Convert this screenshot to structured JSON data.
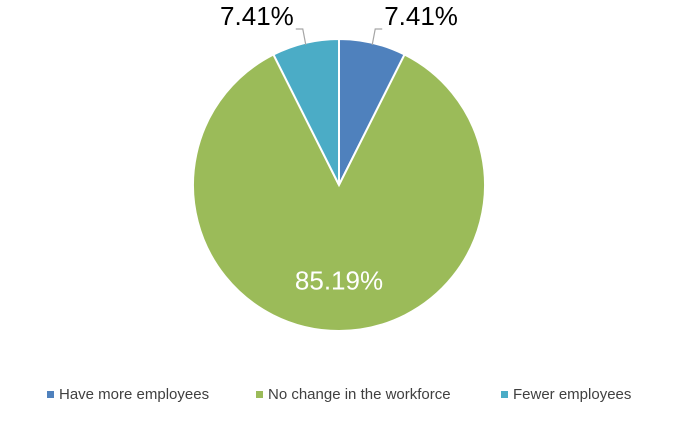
{
  "chart_data": {
    "type": "pie",
    "categories": [
      "Have more employees",
      "No change in the workforce",
      "Fewer employees"
    ],
    "values": [
      7.41,
      85.19,
      7.41
    ],
    "value_labels": [
      "7.41%",
      "85.19%",
      "7.41%"
    ],
    "colors": [
      "#4f81bd",
      "#9bbb59",
      "#4bacc6"
    ],
    "legend": "bottom"
  }
}
